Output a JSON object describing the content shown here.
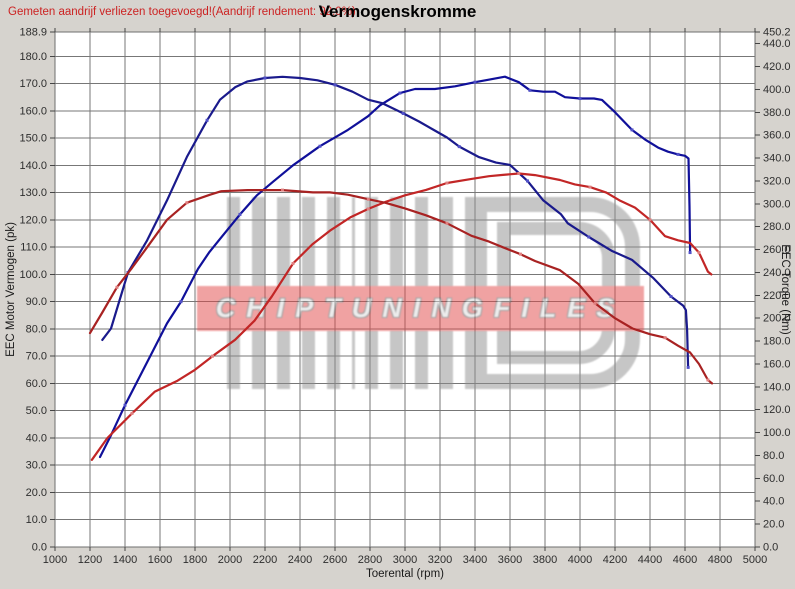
{
  "header": {
    "note": "Gemeten aandrijf verliezen toegevoegd!(Aandrijf rendement: 92.0%)",
    "title": "Vermogenskromme"
  },
  "watermark": {
    "logo": "hd-stripe-monogram",
    "text": "CHIPTUNINGFILES",
    "band_color": "#e24848",
    "stripe_color": "#8e8e8e"
  },
  "chart_data": {
    "type": "line",
    "title": "Vermogenskromme",
    "xlabel": "Toerental (rpm)",
    "ylabel_left": "EEC Motor Vermogen (pk)",
    "ylabel_right": "EEC Torque (Nm)",
    "x_range": [
      1000,
      5000
    ],
    "y_left_range": [
      0,
      188.9
    ],
    "y_right_range": [
      0,
      450.2
    ],
    "grid": true,
    "legend": "none",
    "x_ticks": [
      "1000",
      "1200",
      "1400",
      "1600",
      "1800",
      "2000",
      "2200",
      "2400",
      "2600",
      "2800",
      "3000",
      "3200",
      "3400",
      "3600",
      "3800",
      "4000",
      "4200",
      "4400",
      "4600",
      "4800",
      "5000"
    ],
    "y_left_ticks": [
      "0.0",
      "10.0",
      "20.0",
      "30.0",
      "40.0",
      "50.0",
      "60.0",
      "70.0",
      "80.0",
      "90.0",
      "100.0",
      "110.0",
      "120.0",
      "130.0",
      "140.0",
      "150.0",
      "160.0",
      "170.0",
      "180.0",
      "188.9"
    ],
    "y_right_ticks": [
      "0.0",
      "20.0",
      "40.0",
      "60.0",
      "80.0",
      "100.0",
      "120.0",
      "140.0",
      "160.0",
      "180.0",
      "200.0",
      "220.0",
      "240.0",
      "260.0",
      "280.0",
      "300.0",
      "320.0",
      "340.0",
      "360.0",
      "380.0",
      "400.0",
      "420.0",
      "440.0",
      "450.2"
    ],
    "series": [
      {
        "id": "power_tuned_blue",
        "axis": "left",
        "unit": "pk",
        "color": "#10109a",
        "marker_color": "#5050c8",
        "points": [
          [
            1257,
            33
          ],
          [
            1320,
            41
          ],
          [
            1400,
            52
          ],
          [
            1480,
            62
          ],
          [
            1560,
            72
          ],
          [
            1640,
            82
          ],
          [
            1720,
            90
          ],
          [
            1817,
            102
          ],
          [
            1880,
            108
          ],
          [
            1943,
            113
          ],
          [
            2057,
            122
          ],
          [
            2154,
            129
          ],
          [
            2246,
            134
          ],
          [
            2360,
            140
          ],
          [
            2514,
            147
          ],
          [
            2674,
            153
          ],
          [
            2789,
            158
          ],
          [
            2857,
            162
          ],
          [
            2971,
            166.5
          ],
          [
            3057,
            168
          ],
          [
            3171,
            168
          ],
          [
            3286,
            169
          ],
          [
            3400,
            170.5
          ],
          [
            3486,
            171.5
          ],
          [
            3571,
            172.5
          ],
          [
            3650,
            170.5
          ],
          [
            3714,
            167.5
          ],
          [
            3790,
            167
          ],
          [
            3857,
            167
          ],
          [
            3914,
            165
          ],
          [
            4000,
            164.5
          ],
          [
            4080,
            164.5
          ],
          [
            4126,
            164
          ],
          [
            4200,
            159.5
          ],
          [
            4297,
            153
          ],
          [
            4371,
            149.5
          ],
          [
            4446,
            146.5
          ],
          [
            4503,
            145
          ],
          [
            4560,
            144
          ],
          [
            4600,
            143.5
          ],
          [
            4620,
            142.5
          ],
          [
            4626,
            125
          ],
          [
            4629,
            108
          ]
        ]
      },
      {
        "id": "torque_tuned_blue",
        "axis": "right",
        "unit": "Nm",
        "color": "#1a1a8c",
        "marker_color": "#5050c8",
        "points": [
          [
            1270,
            181
          ],
          [
            1320,
            191
          ],
          [
            1417,
            240
          ],
          [
            1526,
            268
          ],
          [
            1640,
            303
          ],
          [
            1754,
            341
          ],
          [
            1869,
            373
          ],
          [
            1943,
            391
          ],
          [
            2030,
            402
          ],
          [
            2100,
            407
          ],
          [
            2200,
            410
          ],
          [
            2300,
            411
          ],
          [
            2400,
            410
          ],
          [
            2500,
            408
          ],
          [
            2600,
            404
          ],
          [
            2700,
            398
          ],
          [
            2789,
            391
          ],
          [
            2870,
            388
          ],
          [
            2990,
            379
          ],
          [
            3080,
            372
          ],
          [
            3160,
            365
          ],
          [
            3240,
            358
          ],
          [
            3310,
            350
          ],
          [
            3420,
            341
          ],
          [
            3520,
            336
          ],
          [
            3600,
            334
          ],
          [
            3700,
            320
          ],
          [
            3790,
            303
          ],
          [
            3890,
            291
          ],
          [
            3930,
            283
          ],
          [
            4050,
            271
          ],
          [
            4180,
            259
          ],
          [
            4297,
            251
          ],
          [
            4420,
            235
          ],
          [
            4520,
            219
          ],
          [
            4589,
            211
          ],
          [
            4605,
            207
          ],
          [
            4612,
            190
          ],
          [
            4618,
            157
          ]
        ]
      },
      {
        "id": "power_original_red",
        "axis": "left",
        "unit": "pk",
        "color": "#c22626",
        "marker_color": "#e08080",
        "points": [
          [
            1211,
            32
          ],
          [
            1300,
            40
          ],
          [
            1440,
            49
          ],
          [
            1571,
            57
          ],
          [
            1700,
            61
          ],
          [
            1800,
            65
          ],
          [
            1900,
            70
          ],
          [
            2029,
            76
          ],
          [
            2140,
            83
          ],
          [
            2240,
            92
          ],
          [
            2360,
            104
          ],
          [
            2470,
            111
          ],
          [
            2571,
            116
          ],
          [
            2690,
            121
          ],
          [
            2790,
            124
          ],
          [
            2886,
            126.5
          ],
          [
            3000,
            129
          ],
          [
            3120,
            131
          ],
          [
            3240,
            133.5
          ],
          [
            3380,
            135
          ],
          [
            3480,
            136
          ],
          [
            3560,
            136.5
          ],
          [
            3650,
            137
          ],
          [
            3743,
            136.4
          ],
          [
            3886,
            134.6
          ],
          [
            3971,
            133
          ],
          [
            4057,
            132
          ],
          [
            4150,
            130
          ],
          [
            4230,
            127
          ],
          [
            4314,
            124.5
          ],
          [
            4400,
            120
          ],
          [
            4486,
            114
          ],
          [
            4560,
            112.5
          ],
          [
            4629,
            111.5
          ],
          [
            4680,
            108
          ],
          [
            4731,
            101
          ],
          [
            4750,
            100
          ]
        ]
      },
      {
        "id": "torque_original_red",
        "axis": "right",
        "unit": "Nm",
        "color": "#a82222",
        "marker_color": "#e08080",
        "points": [
          [
            1200,
            187
          ],
          [
            1270,
            205
          ],
          [
            1354,
            227
          ],
          [
            1440,
            244
          ],
          [
            1526,
            262
          ],
          [
            1640,
            286
          ],
          [
            1754,
            301
          ],
          [
            1886,
            308
          ],
          [
            1950,
            311
          ],
          [
            2100,
            312
          ],
          [
            2300,
            312
          ],
          [
            2474,
            310
          ],
          [
            2571,
            310
          ],
          [
            2674,
            308
          ],
          [
            2790,
            304
          ],
          [
            2886,
            301
          ],
          [
            3000,
            296
          ],
          [
            3120,
            290
          ],
          [
            3240,
            283
          ],
          [
            3380,
            272
          ],
          [
            3480,
            267
          ],
          [
            3560,
            262
          ],
          [
            3660,
            256
          ],
          [
            3743,
            250
          ],
          [
            3886,
            242
          ],
          [
            3990,
            230
          ],
          [
            4086,
            213
          ],
          [
            4200,
            200
          ],
          [
            4300,
            191
          ],
          [
            4400,
            186
          ],
          [
            4486,
            183
          ],
          [
            4560,
            176
          ],
          [
            4629,
            170
          ],
          [
            4680,
            160
          ],
          [
            4731,
            146
          ],
          [
            4754,
            143
          ]
        ]
      }
    ]
  }
}
